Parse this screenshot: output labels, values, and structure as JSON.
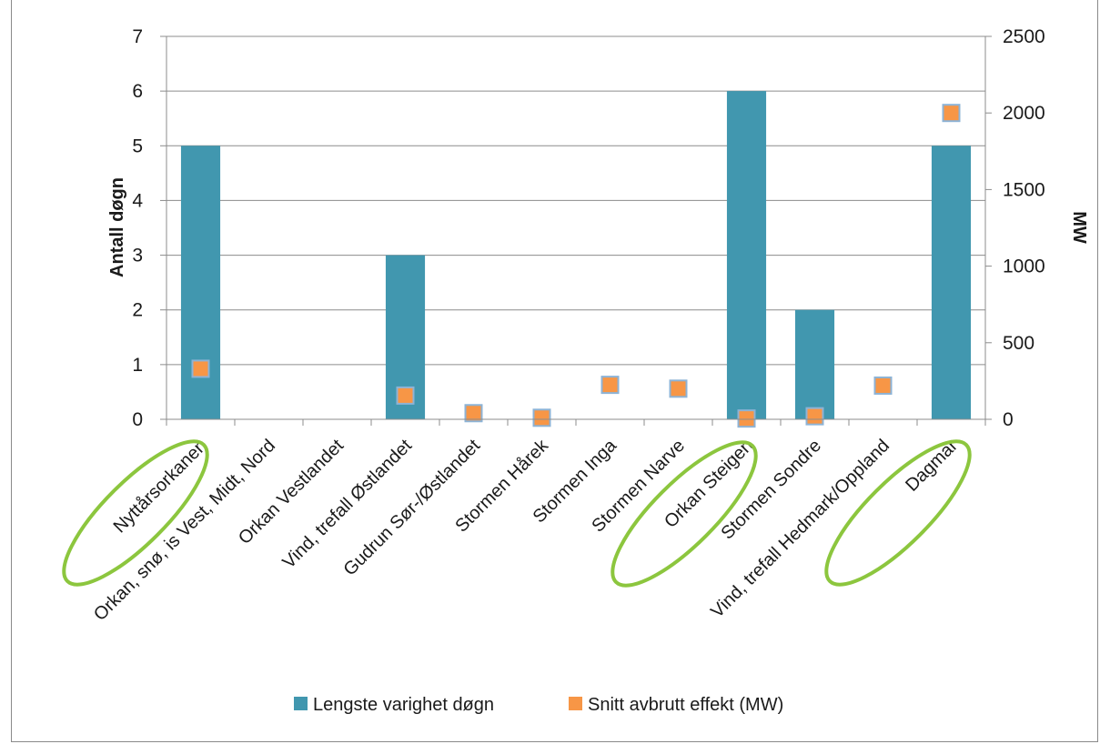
{
  "chart_data": {
    "type": "bar",
    "categories": [
      "Nyttårsorkanen",
      "Orkan, snø, is Vest, Midt, Nord",
      "Orkan Vestlandet",
      "Vind, trefall Østlandet",
      "Gudrun Sør-/Østlandet",
      "Stormen Hårek",
      "Stormen Inga",
      "Stormen Narve",
      "Orkan Steigen",
      "Stormen Sondre",
      "Vind, trefall Hedmark/Oppland",
      "Dagmar"
    ],
    "series": [
      {
        "name": "Lengste varighet døgn",
        "type": "bar",
        "axis": "left",
        "color": "#4197af",
        "values": [
          5,
          0,
          0,
          3,
          0,
          0,
          0,
          0,
          6,
          2,
          0,
          5
        ]
      },
      {
        "name": "Snitt avbrutt effekt (MW)",
        "type": "scatter",
        "axis": "right",
        "color": "#f79646",
        "values": [
          330,
          null,
          null,
          155,
          40,
          10,
          225,
          200,
          5,
          20,
          220,
          2000
        ]
      }
    ],
    "ylabel": "Antall døgn",
    "y2label": "MW",
    "ylim": [
      0,
      7
    ],
    "y2lim": [
      0,
      2500
    ],
    "yticks": [
      "0",
      "1",
      "2",
      "3",
      "4",
      "5",
      "6",
      "7"
    ],
    "y2ticks": [
      "0",
      "500",
      "1000",
      "1500",
      "2000",
      "2500"
    ],
    "grid": true,
    "legend": "bottom",
    "highlighted_categories": [
      "Nyttårsorkanen",
      "Orkan Steigen",
      "Dagmar"
    ],
    "highlight_color": "#8cc63e"
  }
}
